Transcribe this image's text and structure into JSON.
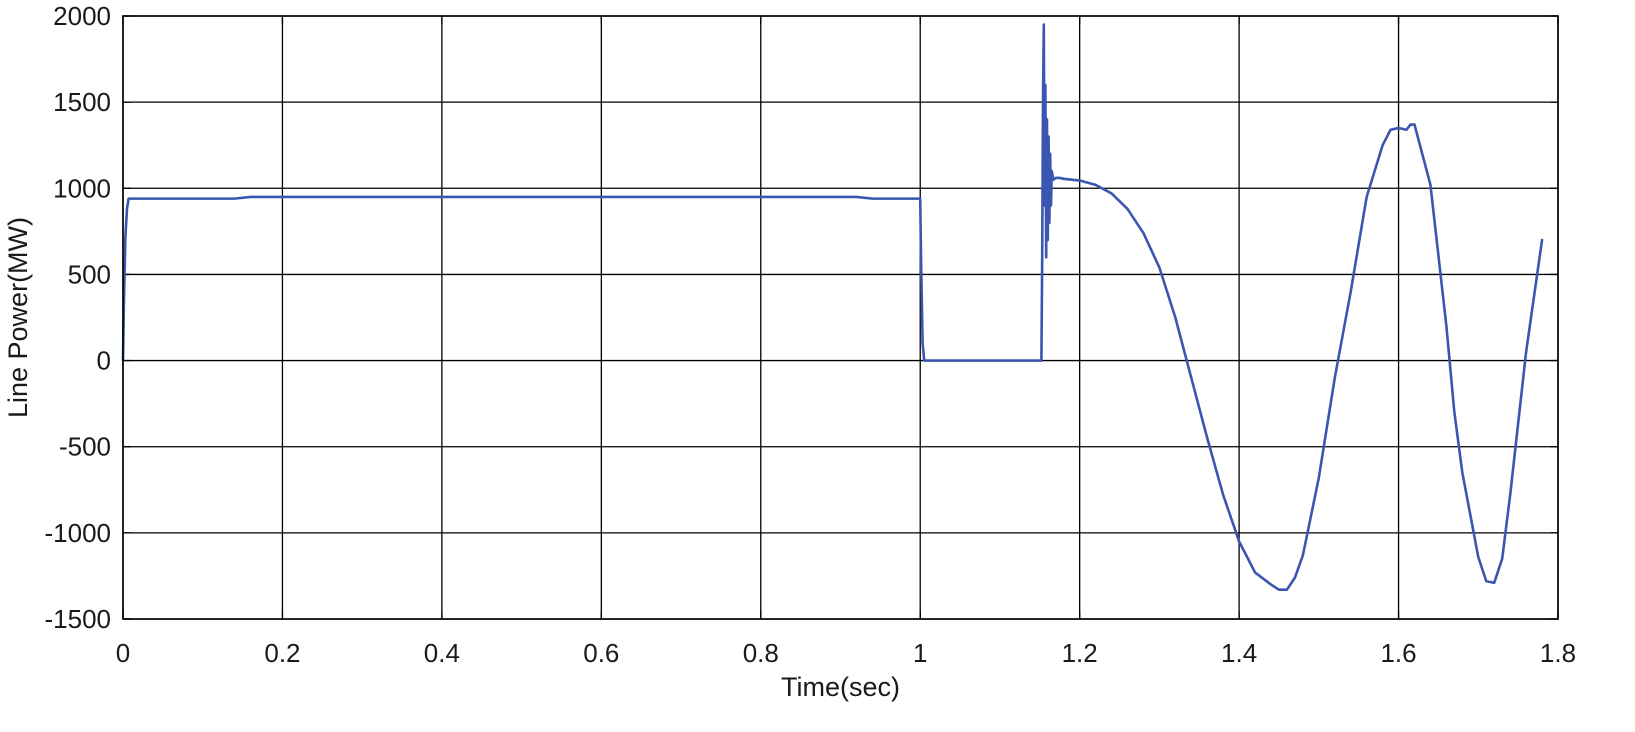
{
  "chart_data": {
    "type": "line",
    "title": "",
    "xlabel": "Time(sec)",
    "ylabel": "Line Power(MW)",
    "xlim": [
      0,
      1.8
    ],
    "ylim": [
      -1500,
      2000
    ],
    "xticks": [
      0,
      0.2,
      0.4,
      0.6,
      0.8,
      1,
      1.2,
      1.4,
      1.6,
      1.8
    ],
    "xtick_labels": [
      "0",
      "0.2",
      "0.4",
      "0.6",
      "0.8",
      "1",
      "1.2",
      "1.4",
      "1.6",
      "1.8"
    ],
    "yticks": [
      2000,
      1500,
      1000,
      500,
      0,
      -500,
      -1000,
      -1500
    ],
    "ytick_labels": [
      "2000",
      "1500",
      "1000",
      "500",
      "0",
      "-500",
      "-1000",
      "-1500"
    ],
    "grid": true,
    "legend": "none",
    "line_color": "#3a56b0",
    "series": [
      {
        "x": [
          0,
          0.001,
          0.003,
          0.005,
          0.007,
          0.01,
          0.05,
          0.1,
          0.14,
          0.16,
          0.2,
          0.4,
          0.6,
          0.8,
          0.92,
          0.94,
          1.0,
          1.001,
          1.003,
          1.005,
          1.01,
          1.05,
          1.1,
          1.152,
          1.153,
          1.154,
          1.155,
          1.156,
          1.157,
          1.158,
          1.159,
          1.16,
          1.161,
          1.162,
          1.163,
          1.164,
          1.165,
          1.167,
          1.17,
          1.175,
          1.18,
          1.2,
          1.22,
          1.24,
          1.26,
          1.28,
          1.3,
          1.32,
          1.34,
          1.36,
          1.38,
          1.4,
          1.42,
          1.44,
          1.45,
          1.46,
          1.47,
          1.48,
          1.5,
          1.52,
          1.54,
          1.56,
          1.58,
          1.59,
          1.6,
          1.61,
          1.615,
          1.62,
          1.64,
          1.66,
          1.67,
          1.68,
          1.7,
          1.71,
          1.72,
          1.73,
          1.74,
          1.76,
          1.78
        ],
        "y": [
          0,
          300,
          720,
          880,
          940,
          940,
          940,
          940,
          940,
          950,
          950,
          950,
          950,
          950,
          950,
          940,
          940,
          600,
          100,
          0,
          0,
          0,
          0,
          0,
          600,
          1500,
          1950,
          900,
          1600,
          600,
          1400,
          700,
          1300,
          800,
          1200,
          900,
          1100,
          1050,
          1060,
          1060,
          1055,
          1045,
          1020,
          970,
          880,
          740,
          540,
          250,
          -100,
          -450,
          -780,
          -1050,
          -1230,
          -1300,
          -1330,
          -1330,
          -1260,
          -1130,
          -680,
          -100,
          400,
          950,
          1250,
          1340,
          1350,
          1340,
          1370,
          1370,
          1020,
          200,
          -300,
          -650,
          -1140,
          -1280,
          -1290,
          -1150,
          -780,
          50,
          700
        ]
      }
    ]
  }
}
